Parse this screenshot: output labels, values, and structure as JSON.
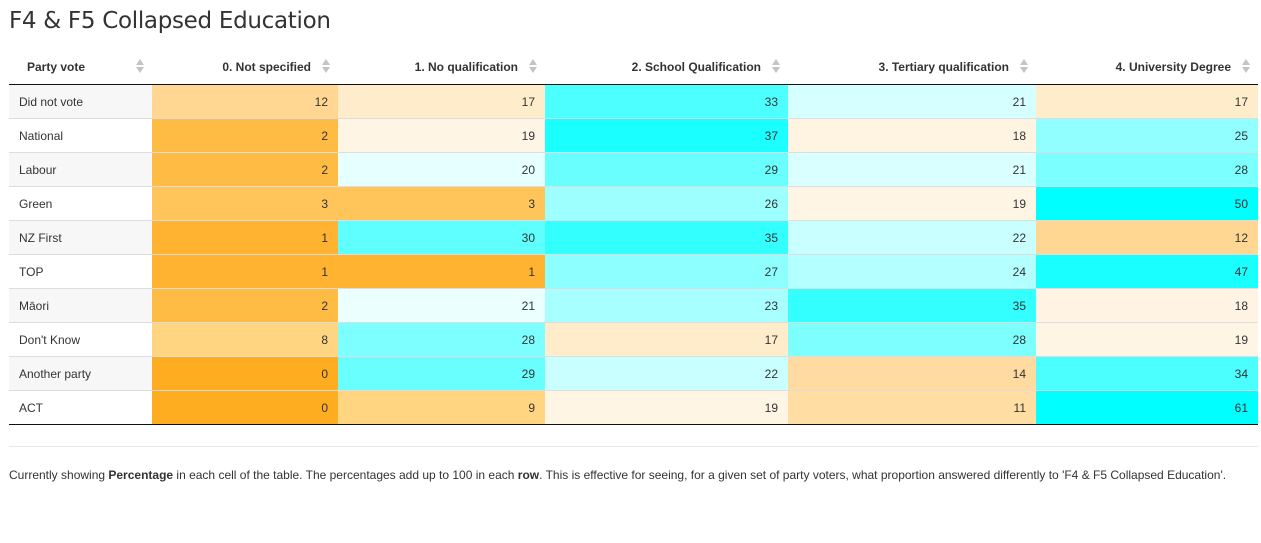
{
  "title": "F4 & F5 Collapsed Education",
  "columns": [
    "Party vote",
    "0. Not specified",
    "1. No qualification",
    "2. School Qualification",
    "3. Tertiary qualification",
    "4. University Degree"
  ],
  "rows": [
    {
      "label": "Did not vote",
      "values": [
        12,
        17,
        33,
        21,
        17
      ]
    },
    {
      "label": "National",
      "values": [
        2,
        19,
        37,
        18,
        25
      ]
    },
    {
      "label": "Labour",
      "values": [
        2,
        20,
        29,
        21,
        28
      ]
    },
    {
      "label": "Green",
      "values": [
        3,
        3,
        26,
        19,
        50
      ]
    },
    {
      "label": "NZ First",
      "values": [
        1,
        30,
        35,
        22,
        12
      ]
    },
    {
      "label": "TOP",
      "values": [
        1,
        1,
        27,
        24,
        47
      ]
    },
    {
      "label": "Māori",
      "values": [
        2,
        21,
        23,
        35,
        18
      ]
    },
    {
      "label": "Don't Know",
      "values": [
        8,
        28,
        17,
        28,
        19
      ]
    },
    {
      "label": "Another party",
      "values": [
        0,
        29,
        22,
        14,
        34
      ]
    },
    {
      "label": "ACT",
      "values": [
        0,
        9,
        19,
        11,
        61
      ]
    }
  ],
  "cell_colors": [
    [
      "#ffd793",
      "#ffeccb",
      "#4dffff",
      "#d6ffff",
      "#ffecca"
    ],
    [
      "#ffbc45",
      "#fff5e5",
      "#1affff",
      "#fff4e2",
      "#91ffff"
    ],
    [
      "#ffbc45",
      "#e6ffff",
      "#6affff",
      "#d9ffff",
      "#7cffff"
    ],
    [
      "#ffc45a",
      "#ffc45a",
      "#9effff",
      "#fff5e4",
      "#00ffff"
    ],
    [
      "#ffb330",
      "#5fffff",
      "#33ffff",
      "#caffff",
      "#ffd793"
    ],
    [
      "#ffb330",
      "#ffb330",
      "#8dffff",
      "#b4ffff",
      "#19ffff"
    ],
    [
      "#ffbc45",
      "#ebffff",
      "#a8ffff",
      "#33ffff",
      "#fff4e3"
    ],
    [
      "#ffd582",
      "#7dffff",
      "#ffeccb",
      "#7dffff",
      "#fff5e5"
    ],
    [
      "#ffad20",
      "#6affff",
      "#caffff",
      "#ffdba2",
      "#4cffff"
    ],
    [
      "#ffad20",
      "#ffd582",
      "#fff5e5",
      "#ffdda3",
      "#00ffff"
    ]
  ],
  "footnote": {
    "t1": "Currently showing ",
    "b1": "Percentage",
    "t2": " in each cell of the table. The percentages add up to 100 in each ",
    "b2": "row",
    "t3": ". This is effective for seeing, for a given set of party voters, what proportion answered differently to 'F4 & F5 Collapsed Education'."
  }
}
